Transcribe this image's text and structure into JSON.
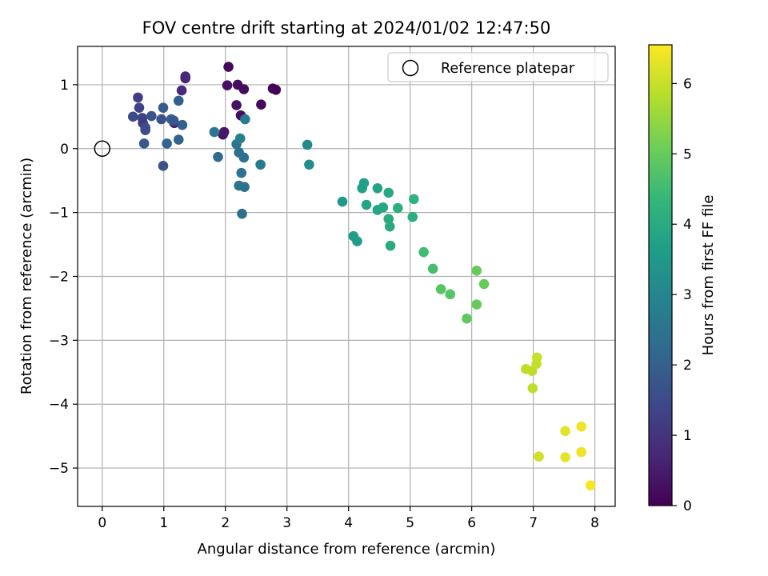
{
  "chart_data": {
    "type": "scatter",
    "title": "FOV centre drift starting at 2024/01/02 12:47:50",
    "xlabel": "Angular distance from reference (arcmin)",
    "ylabel": "Rotation from reference (arcmin)",
    "xlim": [
      -0.4,
      8.33
    ],
    "ylim": [
      -5.6,
      1.6
    ],
    "xticks": [
      0,
      1,
      2,
      3,
      4,
      5,
      6,
      7,
      8
    ],
    "yticks": [
      1,
      0,
      -1,
      -2,
      -3,
      -4,
      -5
    ],
    "grid": true,
    "legend": {
      "placement": "upper right",
      "entries": [
        "Reference platepar"
      ]
    },
    "reference_point": {
      "x": 0,
      "y": 0,
      "label": "Reference platepar"
    },
    "colorbar": {
      "label": "Hours from first FF file",
      "range": [
        0,
        6.55
      ],
      "ticks": [
        0,
        1,
        2,
        3,
        4,
        5,
        6
      ],
      "colormap": [
        "#440154",
        "#482878",
        "#3e4989",
        "#31688e",
        "#26828e",
        "#1f9e89",
        "#35b779",
        "#6ece58",
        "#b5de2b",
        "#fde725"
      ]
    },
    "series": [
      {
        "points": [
          {
            "x": 2.05,
            "y": 1.28,
            "t": 0.15
          },
          {
            "x": 2.03,
            "y": 0.99,
            "t": 0.3
          },
          {
            "x": 2.2,
            "y": 1.0,
            "t": 0.25
          },
          {
            "x": 2.3,
            "y": 0.93,
            "t": 0.2
          },
          {
            "x": 2.18,
            "y": 0.68,
            "t": 0.3
          },
          {
            "x": 2.58,
            "y": 0.69,
            "t": 0.15
          },
          {
            "x": 2.77,
            "y": 0.94,
            "t": 0.1
          },
          {
            "x": 2.82,
            "y": 0.92,
            "t": 0.05
          },
          {
            "x": 2.25,
            "y": 0.52,
            "t": 0.2
          },
          {
            "x": 1.96,
            "y": 0.22,
            "t": 0.35
          },
          {
            "x": 1.98,
            "y": 0.26,
            "t": 0.4
          },
          {
            "x": 1.35,
            "y": 1.1,
            "t": 0.7
          },
          {
            "x": 1.35,
            "y": 1.13,
            "t": 0.75
          },
          {
            "x": 1.29,
            "y": 0.91,
            "t": 0.8
          },
          {
            "x": 1.17,
            "y": 0.4,
            "t": 0.6
          },
          {
            "x": 0.58,
            "y": 0.8,
            "t": 1.2
          },
          {
            "x": 0.6,
            "y": 0.64,
            "t": 1.3
          },
          {
            "x": 0.5,
            "y": 0.5,
            "t": 1.5
          },
          {
            "x": 0.65,
            "y": 0.48,
            "t": 1.4
          },
          {
            "x": 0.66,
            "y": 0.4,
            "t": 1.1
          },
          {
            "x": 0.7,
            "y": 0.33,
            "t": 1.6
          },
          {
            "x": 0.7,
            "y": 0.29,
            "t": 1.5
          },
          {
            "x": 0.8,
            "y": 0.51,
            "t": 1.7
          },
          {
            "x": 0.68,
            "y": 0.08,
            "t": 1.8
          },
          {
            "x": 0.96,
            "y": 0.46,
            "t": 1.7
          },
          {
            "x": 0.99,
            "y": 0.64,
            "t": 1.9
          },
          {
            "x": 1.12,
            "y": 0.46,
            "t": 2.0
          },
          {
            "x": 1.16,
            "y": 0.44,
            "t": 1.8
          },
          {
            "x": 1.24,
            "y": 0.75,
            "t": 2.0
          },
          {
            "x": 1.3,
            "y": 0.37,
            "t": 2.0
          },
          {
            "x": 1.05,
            "y": 0.08,
            "t": 2.1
          },
          {
            "x": 1.24,
            "y": 0.14,
            "t": 2.1
          },
          {
            "x": 0.99,
            "y": -0.27,
            "t": 1.7
          },
          {
            "x": 1.82,
            "y": 0.26,
            "t": 2.6
          },
          {
            "x": 1.88,
            "y": -0.13,
            "t": 2.3
          },
          {
            "x": 2.18,
            "y": 0.07,
            "t": 2.5
          },
          {
            "x": 2.24,
            "y": 0.16,
            "t": 2.8
          },
          {
            "x": 2.22,
            "y": -0.06,
            "t": 2.5
          },
          {
            "x": 2.3,
            "y": -0.14,
            "t": 2.4
          },
          {
            "x": 2.32,
            "y": 0.46,
            "t": 2.7
          },
          {
            "x": 2.26,
            "y": -0.38,
            "t": 2.5
          },
          {
            "x": 2.22,
            "y": -0.58,
            "t": 2.5
          },
          {
            "x": 2.31,
            "y": -0.6,
            "t": 2.5
          },
          {
            "x": 2.27,
            "y": -1.02,
            "t": 2.4
          },
          {
            "x": 2.57,
            "y": -0.25,
            "t": 2.7
          },
          {
            "x": 3.33,
            "y": 0.06,
            "t": 3.1
          },
          {
            "x": 3.36,
            "y": -0.25,
            "t": 3.2
          },
          {
            "x": 3.9,
            "y": -0.83,
            "t": 3.5
          },
          {
            "x": 4.08,
            "y": -1.37,
            "t": 3.6
          },
          {
            "x": 4.14,
            "y": -1.45,
            "t": 3.6
          },
          {
            "x": 4.22,
            "y": -0.62,
            "t": 3.7
          },
          {
            "x": 4.25,
            "y": -0.54,
            "t": 3.7
          },
          {
            "x": 4.29,
            "y": -0.88,
            "t": 3.8
          },
          {
            "x": 4.47,
            "y": -0.62,
            "t": 3.8
          },
          {
            "x": 4.47,
            "y": -0.96,
            "t": 3.8
          },
          {
            "x": 4.56,
            "y": -0.92,
            "t": 3.9
          },
          {
            "x": 4.65,
            "y": -0.69,
            "t": 3.9
          },
          {
            "x": 4.65,
            "y": -1.1,
            "t": 4.0
          },
          {
            "x": 4.67,
            "y": -1.22,
            "t": 4.0
          },
          {
            "x": 4.68,
            "y": -1.52,
            "t": 4.0
          },
          {
            "x": 4.8,
            "y": -0.93,
            "t": 4.1
          },
          {
            "x": 5.04,
            "y": -1.07,
            "t": 4.1
          },
          {
            "x": 5.06,
            "y": -0.79,
            "t": 4.2
          },
          {
            "x": 5.22,
            "y": -1.62,
            "t": 4.5
          },
          {
            "x": 5.37,
            "y": -1.88,
            "t": 4.6
          },
          {
            "x": 5.5,
            "y": -2.2,
            "t": 4.8
          },
          {
            "x": 5.65,
            "y": -2.28,
            "t": 4.8
          },
          {
            "x": 5.92,
            "y": -2.66,
            "t": 4.9
          },
          {
            "x": 6.08,
            "y": -1.91,
            "t": 5.0
          },
          {
            "x": 6.08,
            "y": -2.44,
            "t": 5.0
          },
          {
            "x": 6.2,
            "y": -2.12,
            "t": 5.0
          },
          {
            "x": 6.88,
            "y": -3.45,
            "t": 5.9
          },
          {
            "x": 6.98,
            "y": -3.48,
            "t": 5.9
          },
          {
            "x": 7.05,
            "y": -3.37,
            "t": 5.95
          },
          {
            "x": 7.06,
            "y": -3.27,
            "t": 6.0
          },
          {
            "x": 6.99,
            "y": -3.75,
            "t": 5.9
          },
          {
            "x": 7.09,
            "y": -4.82,
            "t": 6.1
          },
          {
            "x": 7.52,
            "y": -4.42,
            "t": 6.3
          },
          {
            "x": 7.52,
            "y": -4.83,
            "t": 6.3
          },
          {
            "x": 7.78,
            "y": -4.35,
            "t": 6.4
          },
          {
            "x": 7.78,
            "y": -4.75,
            "t": 6.4
          },
          {
            "x": 7.93,
            "y": -5.27,
            "t": 6.5
          }
        ]
      }
    ]
  }
}
